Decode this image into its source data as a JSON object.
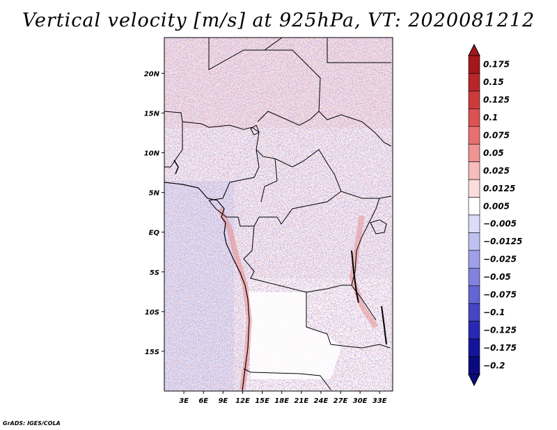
{
  "title": "Vertical velocity [m/s] at 925hPa, VT: 2020081212",
  "credit": "GrADS: IGES/COLA",
  "map": {
    "lat_labels": [
      "20N",
      "15N",
      "10N",
      "5N",
      "EQ",
      "5S",
      "10S",
      "15S"
    ],
    "lat_values": [
      20,
      15,
      10,
      5,
      0,
      -5,
      -10,
      -15
    ],
    "lon_labels": [
      "3E",
      "6E",
      "9E",
      "12E",
      "15E",
      "18E",
      "21E",
      "24E",
      "27E",
      "30E",
      "33E"
    ],
    "lon_values": [
      3,
      6,
      9,
      12,
      15,
      18,
      21,
      24,
      27,
      30,
      33
    ],
    "lon_range": [
      0,
      35
    ],
    "lat_range": [
      -20,
      24.5
    ]
  },
  "colorbar": {
    "labels": [
      "0.175",
      "0.15",
      "0.125",
      "0.1",
      "0.075",
      "0.05",
      "0.025",
      "0.0125",
      "0.005",
      "−0.005",
      "−0.0125",
      "−0.025",
      "−0.05",
      "−0.075",
      "−0.1",
      "−0.125",
      "−0.175",
      "−0.2"
    ],
    "colors": [
      "#a3171d",
      "#b8262a",
      "#cc3a3a",
      "#dc5252",
      "#e87070",
      "#f09494",
      "#f7bcbc",
      "#fbdcdc",
      "#ffffff",
      "#dcdcf8",
      "#c0c0f2",
      "#a0a0ea",
      "#8282de",
      "#6464d2",
      "#4646c4",
      "#2828b2",
      "#14149a",
      "#0a0a7e"
    ]
  }
}
